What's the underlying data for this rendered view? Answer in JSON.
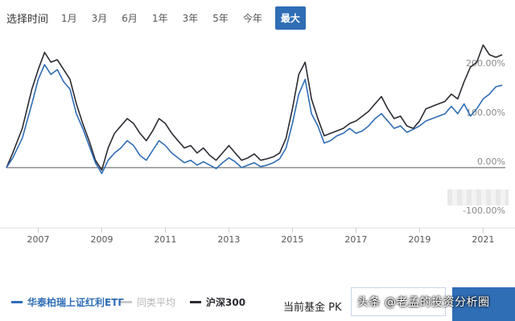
{
  "range": {
    "label": "选择时间",
    "options": [
      "1月",
      "3月",
      "6月",
      "1年",
      "3年",
      "5年",
      "今年",
      "最大"
    ],
    "selected": "最大"
  },
  "colors": {
    "etf": "#2f6db5",
    "peer_avg": "#c9c9c9",
    "hs300": "#2b2b33",
    "accent": "#2f6db5",
    "zero_line": "#7a7a7a"
  },
  "legend": {
    "etf": "华泰柏瑞上证红利ETF",
    "peer_avg": "同类平均",
    "hs300": "沪深300"
  },
  "pk": {
    "label": "当前基金  PK",
    "input_value": "",
    "button_label": ""
  },
  "watermark": "头条 @老孟的投资分析圈",
  "chart_data": {
    "type": "line",
    "x_ticks": [
      "2007",
      "2009",
      "2011",
      "2013",
      "2015",
      "2017",
      "2019",
      "2021"
    ],
    "y_ticks": [
      "-100.00%",
      "0.00%",
      "100.00%",
      "200.00%"
    ],
    "ylim": [
      -100,
      260
    ],
    "xlim": [
      2006.0,
      2021.7
    ],
    "grid": false,
    "legend_position": "bottom",
    "series": [
      {
        "name": "华泰柏瑞上证红利ETF",
        "key": "etf",
        "points": [
          [
            2006.0,
            0
          ],
          [
            2006.2,
            20
          ],
          [
            2006.5,
            60
          ],
          [
            2006.8,
            130
          ],
          [
            2007.0,
            180
          ],
          [
            2007.2,
            210
          ],
          [
            2007.4,
            190
          ],
          [
            2007.6,
            200
          ],
          [
            2007.8,
            175
          ],
          [
            2008.0,
            160
          ],
          [
            2008.2,
            110
          ],
          [
            2008.4,
            80
          ],
          [
            2008.6,
            45
          ],
          [
            2008.8,
            10
          ],
          [
            2009.0,
            -12
          ],
          [
            2009.2,
            15
          ],
          [
            2009.4,
            30
          ],
          [
            2009.6,
            40
          ],
          [
            2009.8,
            55
          ],
          [
            2010.0,
            45
          ],
          [
            2010.2,
            25
          ],
          [
            2010.4,
            15
          ],
          [
            2010.6,
            35
          ],
          [
            2010.8,
            55
          ],
          [
            2011.0,
            45
          ],
          [
            2011.2,
            30
          ],
          [
            2011.4,
            20
          ],
          [
            2011.6,
            10
          ],
          [
            2011.8,
            15
          ],
          [
            2012.0,
            5
          ],
          [
            2012.2,
            12
          ],
          [
            2012.4,
            5
          ],
          [
            2012.6,
            -2
          ],
          [
            2012.8,
            10
          ],
          [
            2013.0,
            20
          ],
          [
            2013.2,
            12
          ],
          [
            2013.4,
            0
          ],
          [
            2013.6,
            5
          ],
          [
            2013.8,
            10
          ],
          [
            2014.0,
            2
          ],
          [
            2014.2,
            5
          ],
          [
            2014.4,
            10
          ],
          [
            2014.6,
            18
          ],
          [
            2014.8,
            40
          ],
          [
            2015.0,
            90
          ],
          [
            2015.2,
            150
          ],
          [
            2015.4,
            180
          ],
          [
            2015.6,
            110
          ],
          [
            2015.8,
            85
          ],
          [
            2016.0,
            50
          ],
          [
            2016.2,
            55
          ],
          [
            2016.4,
            65
          ],
          [
            2016.6,
            70
          ],
          [
            2016.8,
            80
          ],
          [
            2017.0,
            70
          ],
          [
            2017.2,
            75
          ],
          [
            2017.4,
            85
          ],
          [
            2017.6,
            100
          ],
          [
            2017.8,
            110
          ],
          [
            2018.0,
            95
          ],
          [
            2018.2,
            80
          ],
          [
            2018.4,
            85
          ],
          [
            2018.6,
            72
          ],
          [
            2018.8,
            78
          ],
          [
            2019.0,
            85
          ],
          [
            2019.2,
            95
          ],
          [
            2019.4,
            100
          ],
          [
            2019.6,
            105
          ],
          [
            2019.8,
            110
          ],
          [
            2020.0,
            125
          ],
          [
            2020.2,
            110
          ],
          [
            2020.4,
            130
          ],
          [
            2020.6,
            105
          ],
          [
            2020.8,
            120
          ],
          [
            2021.0,
            140
          ],
          [
            2021.2,
            150
          ],
          [
            2021.4,
            165
          ],
          [
            2021.6,
            168
          ]
        ]
      },
      {
        "name": "沪深300",
        "key": "hs300",
        "points": [
          [
            2006.0,
            0
          ],
          [
            2006.2,
            30
          ],
          [
            2006.5,
            80
          ],
          [
            2006.8,
            160
          ],
          [
            2007.0,
            200
          ],
          [
            2007.2,
            235
          ],
          [
            2007.4,
            215
          ],
          [
            2007.6,
            220
          ],
          [
            2007.8,
            200
          ],
          [
            2008.0,
            180
          ],
          [
            2008.2,
            130
          ],
          [
            2008.4,
            90
          ],
          [
            2008.6,
            55
          ],
          [
            2008.8,
            15
          ],
          [
            2009.0,
            -5
          ],
          [
            2009.2,
            40
          ],
          [
            2009.4,
            70
          ],
          [
            2009.6,
            85
          ],
          [
            2009.8,
            100
          ],
          [
            2010.0,
            90
          ],
          [
            2010.2,
            70
          ],
          [
            2010.4,
            55
          ],
          [
            2010.6,
            75
          ],
          [
            2010.8,
            100
          ],
          [
            2011.0,
            90
          ],
          [
            2011.2,
            70
          ],
          [
            2011.4,
            55
          ],
          [
            2011.6,
            40
          ],
          [
            2011.8,
            45
          ],
          [
            2012.0,
            30
          ],
          [
            2012.2,
            40
          ],
          [
            2012.4,
            25
          ],
          [
            2012.6,
            15
          ],
          [
            2012.8,
            30
          ],
          [
            2013.0,
            45
          ],
          [
            2013.2,
            30
          ],
          [
            2013.4,
            15
          ],
          [
            2013.6,
            20
          ],
          [
            2013.8,
            28
          ],
          [
            2014.0,
            15
          ],
          [
            2014.2,
            18
          ],
          [
            2014.4,
            22
          ],
          [
            2014.6,
            30
          ],
          [
            2014.8,
            60
          ],
          [
            2015.0,
            120
          ],
          [
            2015.2,
            190
          ],
          [
            2015.4,
            215
          ],
          [
            2015.6,
            140
          ],
          [
            2015.8,
            100
          ],
          [
            2016.0,
            65
          ],
          [
            2016.2,
            70
          ],
          [
            2016.4,
            75
          ],
          [
            2016.6,
            80
          ],
          [
            2016.8,
            90
          ],
          [
            2017.0,
            95
          ],
          [
            2017.2,
            105
          ],
          [
            2017.4,
            115
          ],
          [
            2017.6,
            130
          ],
          [
            2017.8,
            145
          ],
          [
            2018.0,
            120
          ],
          [
            2018.2,
            100
          ],
          [
            2018.4,
            105
          ],
          [
            2018.6,
            85
          ],
          [
            2018.8,
            80
          ],
          [
            2019.0,
            95
          ],
          [
            2019.2,
            120
          ],
          [
            2019.4,
            125
          ],
          [
            2019.6,
            130
          ],
          [
            2019.8,
            135
          ],
          [
            2020.0,
            150
          ],
          [
            2020.2,
            140
          ],
          [
            2020.4,
            175
          ],
          [
            2020.6,
            205
          ],
          [
            2020.8,
            215
          ],
          [
            2021.0,
            250
          ],
          [
            2021.2,
            230
          ],
          [
            2021.4,
            225
          ],
          [
            2021.6,
            230
          ]
        ]
      }
    ]
  }
}
